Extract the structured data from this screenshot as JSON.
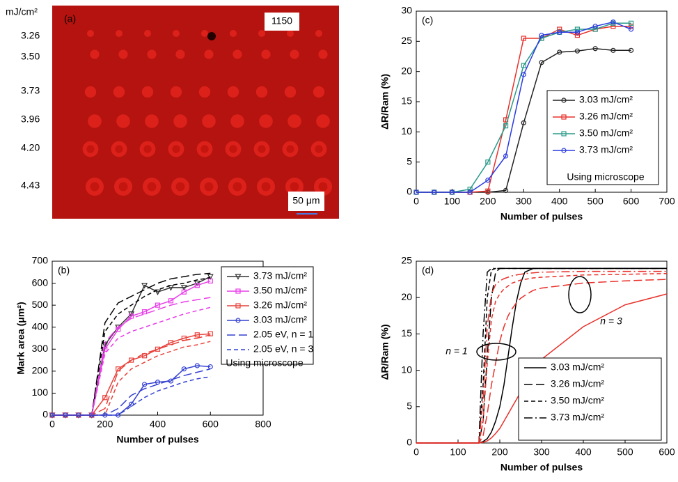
{
  "chart_data": [
    {
      "type": "image",
      "label": "(a)",
      "unit": "mJ/cm²",
      "title": "1150",
      "row_labels": [
        "3.26",
        "3.50",
        "3.73",
        "3.96",
        "4.20",
        "4.43"
      ],
      "scale_bar": "50 μm"
    },
    {
      "type": "line",
      "label": "(b)",
      "xlabel": "Number of pulses",
      "ylabel": "Mark area (μm²)",
      "xlim": [
        0,
        800
      ],
      "xticks": [
        0,
        200,
        400,
        600,
        800
      ],
      "ylim": [
        0,
        700
      ],
      "yticks": [
        0,
        100,
        200,
        300,
        400,
        500,
        600,
        700
      ],
      "legend": "upper right",
      "note": "Using microscope",
      "x": [
        0,
        50,
        100,
        150,
        200,
        250,
        300,
        350,
        400,
        450,
        500,
        550,
        600
      ],
      "series": [
        {
          "name": "3.73 mJ/cm²",
          "color": "#333333",
          "marker": "triangle",
          "dash": "solid",
          "values": [
            0,
            0,
            0,
            0,
            320,
            400,
            460,
            590,
            560,
            580,
            580,
            600,
            630
          ]
        },
        {
          "name": "3.50 mJ/cm²",
          "color": "#e83ee8",
          "marker": "square",
          "dash": "solid",
          "values": [
            0,
            0,
            0,
            0,
            300,
            390,
            450,
            470,
            500,
            520,
            560,
            590,
            610
          ]
        },
        {
          "name": "3.26 mJ/cm²",
          "color": "#e8413a",
          "marker": "square",
          "dash": "solid",
          "values": [
            0,
            0,
            0,
            0,
            80,
            210,
            250,
            270,
            300,
            330,
            350,
            365,
            370
          ]
        },
        {
          "name": "3.03 mJ/cm²",
          "color": "#3340d0",
          "marker": "circle",
          "dash": "solid",
          "values": [
            0,
            0,
            0,
            0,
            0,
            0,
            50,
            140,
            150,
            155,
            210,
            225,
            220
          ]
        },
        {
          "color": "#000000",
          "dash": "long",
          "values": [
            0,
            0,
            0,
            0,
            420,
            510,
            540,
            570,
            600,
            620,
            630,
            640,
            645
          ]
        },
        {
          "color": "#000000",
          "dash": "short",
          "values": [
            0,
            0,
            0,
            0,
            380,
            460,
            500,
            540,
            570,
            590,
            600,
            615,
            625
          ]
        },
        {
          "color": "#e83ee8",
          "dash": "long",
          "values": [
            0,
            0,
            0,
            0,
            330,
            400,
            440,
            460,
            480,
            500,
            515,
            525,
            535
          ]
        },
        {
          "color": "#e83ee8",
          "dash": "short",
          "values": [
            0,
            0,
            0,
            0,
            280,
            350,
            380,
            400,
            420,
            440,
            460,
            475,
            490
          ]
        },
        {
          "color": "#e8413a",
          "dash": "long",
          "values": [
            0,
            0,
            0,
            0,
            30,
            200,
            250,
            280,
            300,
            320,
            340,
            350,
            365
          ]
        },
        {
          "color": "#e8413a",
          "dash": "short",
          "values": [
            0,
            0,
            0,
            0,
            0,
            150,
            210,
            240,
            270,
            290,
            310,
            320,
            335
          ]
        },
        {
          "name": "2.05 eV, n = 1",
          "color": "#3340d0",
          "dash": "long",
          "values": [
            0,
            0,
            0,
            0,
            0,
            30,
            90,
            120,
            140,
            160,
            180,
            195,
            210
          ]
        },
        {
          "name": "2.05 eV, n = 3",
          "color": "#3340d0",
          "dash": "short",
          "values": [
            0,
            0,
            0,
            0,
            0,
            0,
            40,
            80,
            110,
            130,
            150,
            165,
            175
          ]
        }
      ]
    },
    {
      "type": "line",
      "label": "(c)",
      "xlabel": "Number of pulses",
      "ylabel": "ΔR/Ram (%)",
      "xlim": [
        0,
        700
      ],
      "xticks": [
        0,
        100,
        200,
        300,
        400,
        500,
        600,
        700
      ],
      "ylim": [
        0,
        30
      ],
      "yticks": [
        0,
        5,
        10,
        15,
        20,
        25,
        30
      ],
      "legend": "lower right",
      "note": "Using microscope",
      "x": [
        0,
        50,
        100,
        150,
        200,
        250,
        300,
        350,
        400,
        450,
        500,
        550,
        600
      ],
      "series": [
        {
          "name": "3.03 mJ/cm²",
          "color": "#222222",
          "marker": "circle",
          "dash": "solid",
          "values": [
            0,
            0,
            0,
            0,
            0,
            0.3,
            11.5,
            21.5,
            23.2,
            23.4,
            23.8,
            23.5,
            23.5
          ]
        },
        {
          "name": "3.26 mJ/cm²",
          "color": "#e8302a",
          "marker": "square",
          "dash": "solid",
          "values": [
            0,
            0,
            0,
            0,
            0.2,
            12,
            25.5,
            25.5,
            27,
            26,
            27,
            27.5,
            27.5
          ]
        },
        {
          "name": "3.50 mJ/cm²",
          "color": "#2a9a8a",
          "marker": "square",
          "dash": "solid",
          "values": [
            0,
            0,
            0,
            0.5,
            5,
            11,
            21,
            25.5,
            26.5,
            27,
            27,
            28,
            28
          ]
        },
        {
          "name": "3.73 mJ/cm²",
          "color": "#2a3ae0",
          "marker": "circle",
          "dash": "solid",
          "values": [
            0,
            0,
            0,
            0,
            2,
            6,
            19.5,
            26,
            26.5,
            26.5,
            27.5,
            28.2,
            27
          ]
        }
      ]
    },
    {
      "type": "line",
      "label": "(d)",
      "xlabel": "Number of pulses",
      "ylabel": "ΔR/Ram (%)",
      "xlim": [
        0,
        600
      ],
      "xticks": [
        0,
        100,
        200,
        300,
        400,
        500,
        600
      ],
      "ylim": [
        0,
        25
      ],
      "yticks": [
        0,
        5,
        10,
        15,
        20,
        25
      ],
      "legend": "lower right",
      "annotations": [
        "n = 1",
        "n = 3"
      ],
      "x": [
        0,
        150,
        160,
        170,
        180,
        190,
        200,
        210,
        220,
        230,
        240,
        250,
        260,
        280,
        300,
        400,
        500,
        600
      ],
      "series": [
        {
          "name": "3.03 mJ/cm²",
          "color": "#000000",
          "dash": "solid",
          "values": [
            0,
            0,
            0.2,
            0.6,
            1.5,
            3,
            5,
            8,
            12,
            16,
            19.5,
            22,
            23.5,
            24,
            24,
            24,
            24,
            24
          ]
        },
        {
          "name": "3.26 mJ/cm²",
          "color": "#000000",
          "dash": "long",
          "values": [
            0,
            0,
            3,
            12,
            20,
            23.5,
            24,
            24,
            24,
            24,
            24,
            24,
            24,
            24,
            24,
            24,
            24,
            24
          ]
        },
        {
          "name": "3.50 mJ/cm²",
          "color": "#000000",
          "dash": "short",
          "values": [
            0,
            0,
            8,
            20,
            23.8,
            24,
            24,
            24,
            24,
            24,
            24,
            24,
            24,
            24,
            24,
            24,
            24,
            24
          ]
        },
        {
          "name": "3.73 mJ/cm²",
          "color": "#000000",
          "dash": "dashdot",
          "values": [
            0,
            0,
            15,
            23.5,
            24,
            24,
            24,
            24,
            24,
            24,
            24,
            24,
            24,
            24,
            24,
            24,
            24,
            24
          ]
        },
        {
          "color": "#e8302a",
          "dash": "solid",
          "values": [
            0,
            0,
            0.1,
            0.3,
            0.7,
            1.3,
            2,
            3,
            4,
            5,
            6,
            7,
            8,
            10,
            11.5,
            16,
            19,
            20.5
          ]
        },
        {
          "color": "#e8302a",
          "dash": "long",
          "values": [
            0,
            0,
            1,
            4,
            8,
            11,
            14,
            16,
            17.5,
            18.5,
            19.3,
            19.9,
            20.3,
            21,
            21.3,
            22,
            22.3,
            22.5
          ]
        },
        {
          "color": "#e8302a",
          "dash": "short",
          "values": [
            0,
            0,
            3,
            11,
            17,
            19.5,
            20.5,
            21.2,
            21.6,
            22,
            22.2,
            22.4,
            22.5,
            22.7,
            22.8,
            23.1,
            23.2,
            23.3
          ]
        },
        {
          "color": "#e8302a",
          "dash": "dashdot",
          "values": [
            0,
            0,
            6,
            16,
            20.5,
            21.8,
            22.3,
            22.6,
            22.8,
            23,
            23.1,
            23.2,
            23.3,
            23.4,
            23.5,
            23.6,
            23.6,
            23.6
          ]
        }
      ]
    }
  ]
}
